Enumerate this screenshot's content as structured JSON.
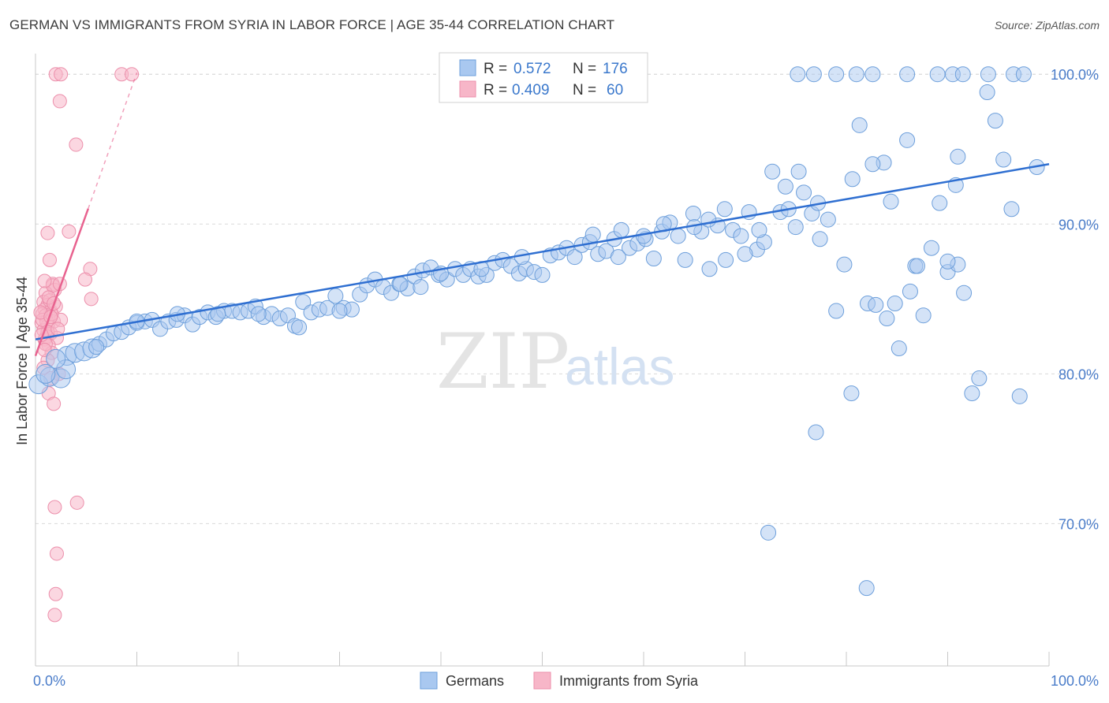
{
  "title": "GERMAN VS IMMIGRANTS FROM SYRIA IN LABOR FORCE | AGE 35-44 CORRELATION CHART",
  "source": "Source: ZipAtlas.com",
  "watermark": {
    "zip": "ZIP",
    "atlas": "atlas"
  },
  "colors": {
    "blue_fill": "#a9c8f0",
    "blue_stroke": "#6d9fdb",
    "blue_line": "#2f6fd1",
    "pink_fill": "#f7b6c8",
    "pink_stroke": "#ec8fab",
    "pink_line": "#e8628f",
    "tick_label": "#4a7cc9",
    "grid": "#d9d9d9"
  },
  "stats": {
    "germans": {
      "r_label": "R =",
      "r_value": "0.572",
      "n_label": "N =",
      "n_value": "176"
    },
    "syria": {
      "r_label": "R =",
      "r_value": "0.409",
      "n_label": "N =",
      "n_value": "60"
    }
  },
  "legend": {
    "germans": "Germans",
    "syria": "Immigrants from Syria"
  },
  "chart_data": {
    "type": "scatter",
    "title": "GERMAN VS IMMIGRANTS FROM SYRIA IN LABOR FORCE | AGE 35-44 CORRELATION CHART",
    "xlabel": "",
    "ylabel": "In Labor Force | Age 35-44",
    "xlim": [
      0,
      100
    ],
    "ylim": [
      60.5,
      100.8
    ],
    "x_tick_labels": [
      "0.0%",
      "100.0%"
    ],
    "y_ticks": [
      70,
      80,
      90,
      100
    ],
    "y_tick_labels": [
      "70.0%",
      "80.0%",
      "90.0%",
      "100.0%"
    ],
    "grid": "horizontal dashed",
    "legend_position": "bottom-center",
    "series": [
      {
        "name": "Germans",
        "color": "#a9c8f0",
        "trend": {
          "x": [
            0,
            100
          ],
          "y": [
            82.3,
            94.0
          ]
        },
        "points": [
          [
            0.3,
            79.3
          ],
          [
            1.4,
            79.8
          ],
          [
            2.5,
            79.7
          ],
          [
            3.1,
            81.2
          ],
          [
            3.9,
            81.4
          ],
          [
            4.8,
            81.5
          ],
          [
            5.6,
            81.7
          ],
          [
            6.3,
            82.0
          ],
          [
            7.0,
            82.3
          ],
          [
            7.7,
            82.7
          ],
          [
            8.5,
            82.8
          ],
          [
            9.2,
            83.1
          ],
          [
            10.0,
            83.4
          ],
          [
            10.8,
            83.5
          ],
          [
            11.5,
            83.6
          ],
          [
            12.3,
            83.0
          ],
          [
            13.1,
            83.5
          ],
          [
            13.9,
            83.6
          ],
          [
            14.7,
            83.9
          ],
          [
            15.5,
            83.3
          ],
          [
            16.2,
            83.8
          ],
          [
            17.0,
            84.1
          ],
          [
            17.8,
            83.8
          ],
          [
            18.6,
            84.2
          ],
          [
            19.4,
            84.2
          ],
          [
            20.2,
            84.1
          ],
          [
            21.0,
            84.2
          ],
          [
            21.7,
            84.5
          ],
          [
            22.5,
            83.8
          ],
          [
            23.3,
            84.0
          ],
          [
            24.1,
            83.7
          ],
          [
            24.9,
            83.9
          ],
          [
            25.6,
            83.2
          ],
          [
            26.4,
            84.8
          ],
          [
            27.2,
            84.1
          ],
          [
            28.0,
            84.3
          ],
          [
            28.8,
            84.4
          ],
          [
            29.6,
            85.2
          ],
          [
            30.4,
            84.4
          ],
          [
            31.2,
            84.3
          ],
          [
            32.0,
            85.3
          ],
          [
            32.7,
            85.9
          ],
          [
            33.5,
            86.3
          ],
          [
            34.3,
            85.8
          ],
          [
            35.1,
            85.4
          ],
          [
            35.9,
            86.0
          ],
          [
            36.7,
            85.7
          ],
          [
            37.4,
            86.5
          ],
          [
            38.2,
            86.9
          ],
          [
            39.0,
            87.1
          ],
          [
            39.8,
            86.6
          ],
          [
            40.6,
            86.3
          ],
          [
            41.4,
            87.0
          ],
          [
            42.2,
            86.6
          ],
          [
            42.9,
            87.0
          ],
          [
            43.7,
            86.5
          ],
          [
            44.5,
            86.6
          ],
          [
            45.3,
            87.4
          ],
          [
            46.1,
            87.6
          ],
          [
            46.9,
            87.2
          ],
          [
            47.7,
            86.7
          ],
          [
            48.4,
            87.0
          ],
          [
            49.2,
            86.8
          ],
          [
            50.0,
            86.6
          ],
          [
            50.8,
            87.9
          ],
          [
            51.6,
            88.1
          ],
          [
            52.4,
            88.4
          ],
          [
            53.2,
            87.8
          ],
          [
            53.9,
            88.6
          ],
          [
            54.7,
            88.8
          ],
          [
            55.5,
            88.0
          ],
          [
            56.3,
            88.2
          ],
          [
            57.1,
            89.0
          ],
          [
            57.8,
            89.6
          ],
          [
            58.6,
            88.4
          ],
          [
            59.4,
            88.7
          ],
          [
            60.2,
            89.0
          ],
          [
            61.0,
            87.7
          ],
          [
            61.8,
            89.5
          ],
          [
            62.6,
            90.1
          ],
          [
            63.4,
            89.2
          ],
          [
            64.1,
            87.6
          ],
          [
            64.9,
            90.7
          ],
          [
            65.7,
            89.5
          ],
          [
            66.5,
            87.0
          ],
          [
            67.3,
            89.9
          ],
          [
            68.1,
            87.6
          ],
          [
            68.8,
            89.6
          ],
          [
            69.6,
            89.2
          ],
          [
            70.4,
            90.8
          ],
          [
            71.2,
            88.3
          ],
          [
            71.9,
            88.8
          ],
          [
            72.7,
            93.5
          ],
          [
            73.5,
            90.8
          ],
          [
            74.3,
            91.0
          ],
          [
            75.0,
            89.8
          ],
          [
            75.8,
            92.1
          ],
          [
            76.6,
            90.7
          ],
          [
            77.4,
            89.0
          ],
          [
            78.2,
            90.3
          ],
          [
            79.0,
            84.2
          ],
          [
            79.8,
            87.3
          ],
          [
            80.6,
            93.0
          ],
          [
            81.3,
            96.6
          ],
          [
            82.1,
            84.7
          ],
          [
            82.9,
            84.6
          ],
          [
            83.7,
            94.1
          ],
          [
            84.4,
            91.5
          ],
          [
            85.2,
            81.7
          ],
          [
            86.0,
            95.6
          ],
          [
            86.8,
            87.2
          ],
          [
            87.6,
            83.9
          ],
          [
            88.4,
            88.4
          ],
          [
            89.2,
            91.4
          ],
          [
            90.0,
            86.8
          ],
          [
            90.8,
            92.6
          ],
          [
            91.6,
            85.4
          ],
          [
            92.4,
            78.7
          ],
          [
            93.1,
            79.7
          ],
          [
            93.9,
            98.8
          ],
          [
            94.7,
            96.9
          ],
          [
            95.5,
            94.3
          ],
          [
            96.3,
            91.0
          ],
          [
            97.1,
            78.5
          ],
          [
            75.3,
            93.5
          ],
          [
            77.2,
            91.4
          ],
          [
            82.6,
            94.0
          ],
          [
            84.8,
            84.7
          ],
          [
            87.0,
            87.2
          ],
          [
            91.0,
            87.3
          ],
          [
            71.4,
            89.6
          ],
          [
            66.4,
            90.3
          ],
          [
            60.0,
            89.2
          ],
          [
            55.0,
            89.3
          ],
          [
            48.0,
            87.8
          ],
          [
            44.0,
            87.0
          ],
          [
            40.0,
            86.7
          ],
          [
            38.0,
            85.8
          ],
          [
            36.0,
            86.0
          ],
          [
            30.0,
            84.2
          ],
          [
            26.0,
            83.1
          ],
          [
            22.0,
            84.0
          ],
          [
            18.0,
            84.0
          ],
          [
            14.0,
            84.0
          ],
          [
            10.0,
            83.5
          ],
          [
            6.0,
            81.8
          ],
          [
            3.0,
            80.3
          ],
          [
            2.0,
            81.0
          ],
          [
            1.0,
            80.0
          ],
          [
            75.2,
            100
          ],
          [
            76.8,
            100
          ],
          [
            79.0,
            100
          ],
          [
            81.0,
            100
          ],
          [
            82.6,
            100
          ],
          [
            86.0,
            100
          ],
          [
            89.0,
            100
          ],
          [
            90.5,
            100
          ],
          [
            91.5,
            100
          ],
          [
            94.0,
            100
          ],
          [
            96.5,
            100
          ],
          [
            97.5,
            100
          ],
          [
            98.8,
            93.8
          ],
          [
            77.0,
            76.1
          ],
          [
            72.3,
            69.4
          ],
          [
            82.0,
            65.7
          ],
          [
            80.5,
            78.7
          ],
          [
            84.0,
            83.7
          ],
          [
            70.0,
            88.0
          ],
          [
            65.0,
            89.8
          ],
          [
            90.0,
            87.5
          ],
          [
            91.0,
            94.5
          ],
          [
            62.0,
            90.0
          ],
          [
            68.0,
            91.0
          ],
          [
            74.0,
            92.5
          ],
          [
            86.3,
            85.5
          ],
          [
            57.5,
            87.8
          ]
        ]
      },
      {
        "name": "Immigrants from Syria",
        "color": "#f7b6c8",
        "trend": {
          "x": [
            0,
            10
          ],
          "y": [
            81.2,
            100.1
          ]
        },
        "points": [
          [
            2.0,
            100
          ],
          [
            2.5,
            100
          ],
          [
            8.5,
            100
          ],
          [
            9.5,
            100
          ],
          [
            2.4,
            98.2
          ],
          [
            4.0,
            95.3
          ],
          [
            1.2,
            89.4
          ],
          [
            3.3,
            89.5
          ],
          [
            1.4,
            87.6
          ],
          [
            5.4,
            87.0
          ],
          [
            4.9,
            86.3
          ],
          [
            1.7,
            86.0
          ],
          [
            1.9,
            85.6
          ],
          [
            1.0,
            85.4
          ],
          [
            5.5,
            85.0
          ],
          [
            0.8,
            84.8
          ],
          [
            1.2,
            84.6
          ],
          [
            0.9,
            84.3
          ],
          [
            1.5,
            84.2
          ],
          [
            0.7,
            84.0
          ],
          [
            1.0,
            83.9
          ],
          [
            1.8,
            83.5
          ],
          [
            0.6,
            83.4
          ],
          [
            1.2,
            83.2
          ],
          [
            0.8,
            82.9
          ],
          [
            1.5,
            82.7
          ],
          [
            1.1,
            82.5
          ],
          [
            0.9,
            82.3
          ],
          [
            2.1,
            82.4
          ],
          [
            1.3,
            81.9
          ],
          [
            1.6,
            81.4
          ],
          [
            1.2,
            80.9
          ],
          [
            0.8,
            80.4
          ],
          [
            2.3,
            80.0
          ],
          [
            1.5,
            79.7
          ],
          [
            1.3,
            78.7
          ],
          [
            1.8,
            78.0
          ],
          [
            1.9,
            71.1
          ],
          [
            4.1,
            71.4
          ],
          [
            2.1,
            68.0
          ],
          [
            2.0,
            65.3
          ],
          [
            1.9,
            63.9
          ],
          [
            1.7,
            85.9
          ],
          [
            2.5,
            83.6
          ],
          [
            0.9,
            86.2
          ],
          [
            1.4,
            84.9
          ],
          [
            1.1,
            83.5
          ],
          [
            2.0,
            84.5
          ],
          [
            0.7,
            83.6
          ],
          [
            1.2,
            82.8
          ],
          [
            1.0,
            82.0
          ],
          [
            2.2,
            83.0
          ],
          [
            1.6,
            84.0
          ],
          [
            0.5,
            84.1
          ],
          [
            1.3,
            85.1
          ],
          [
            0.6,
            82.6
          ],
          [
            1.8,
            84.7
          ],
          [
            2.4,
            86.0
          ],
          [
            1.5,
            83.8
          ],
          [
            0.9,
            81.6
          ]
        ]
      }
    ]
  }
}
